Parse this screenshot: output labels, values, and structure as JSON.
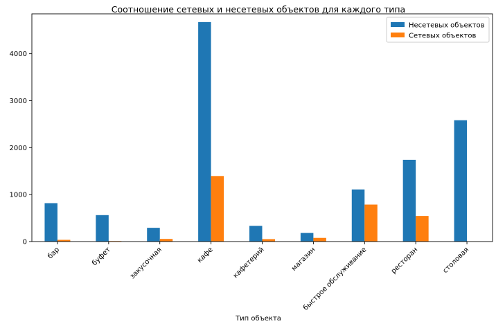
{
  "chart_data": {
    "type": "bar",
    "title": "Соотношение сетевых и несетевых объектов для каждого типа",
    "xlabel": "Тип объекта",
    "ylabel": "",
    "categories": [
      "бар",
      "буфет",
      "закусочная",
      "кафе",
      "кафетерий",
      "магазин",
      "быстрое обслуживание",
      "ресторан",
      "столовая"
    ],
    "series": [
      {
        "name": "Несетевых объектов",
        "color": "#1f77b4",
        "values": [
          818,
          563,
          293,
          4675,
          335,
          183,
          1110,
          1741,
          2584
        ]
      },
      {
        "name": "Сетевых объектов",
        "color": "#ff7f0e",
        "values": [
          37,
          11,
          56,
          1396,
          52,
          78,
          788,
          544,
          3
        ]
      }
    ],
    "ylim": [
      0,
      4850
    ],
    "yticks": [
      0,
      1000,
      2000,
      3000,
      4000
    ],
    "legend_position": "top-right",
    "grid": false
  }
}
